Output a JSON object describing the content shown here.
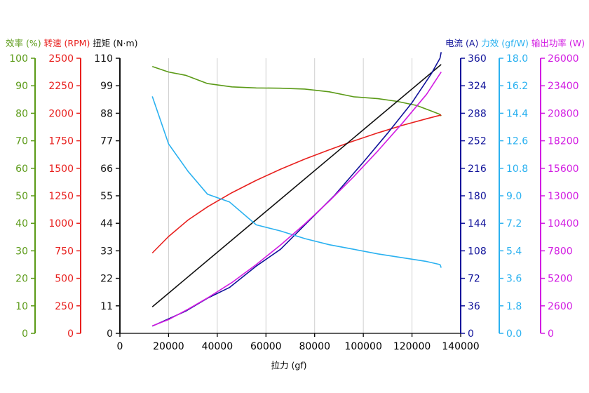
{
  "chart_data": {
    "type": "line",
    "x_axis": {
      "label": "拉力 (gf)",
      "range": [
        0,
        140000
      ],
      "ticks": [
        "0",
        "20000",
        "40000",
        "60000",
        "80000",
        "100000",
        "120000",
        "140000"
      ],
      "color": "#000000"
    },
    "left_axes": [
      {
        "id": "eff",
        "title_parts": [
          {
            "text": "效率 (%)",
            "color": "#5b9a17"
          }
        ],
        "range": [
          0,
          100
        ],
        "color": "#5b9a17",
        "ticks": [
          "0",
          "10",
          "20",
          "30",
          "40",
          "50",
          "60",
          "70",
          "80",
          "90",
          "100"
        ]
      },
      {
        "id": "rpm",
        "title_parts": [
          {
            "text": "转速 (RPM)",
            "color": "#e8201e"
          }
        ],
        "range": [
          0,
          2500
        ],
        "color": "#e8201e",
        "ticks": [
          "0",
          "250",
          "500",
          "750",
          "1000",
          "1250",
          "1500",
          "1750",
          "2000",
          "2250",
          "2500"
        ]
      },
      {
        "id": "torque",
        "title_parts": [
          {
            "text": "扭矩 (N·m)",
            "color": "#111111"
          }
        ],
        "range": [
          0,
          110
        ],
        "color": "#111111",
        "ticks": [
          "0",
          "11",
          "22",
          "33",
          "44",
          "55",
          "66",
          "77",
          "88",
          "99",
          "110"
        ]
      }
    ],
    "right_axes": [
      {
        "id": "current",
        "title_parts": [
          {
            "text": "电流 (A)",
            "color": "#10129a"
          }
        ],
        "range": [
          0,
          360
        ],
        "color": "#10129a",
        "ticks": [
          "0",
          "36",
          "72",
          "108",
          "144",
          "180",
          "216",
          "252",
          "288",
          "324",
          "360"
        ]
      },
      {
        "id": "force_eff",
        "title_parts": [
          {
            "text": "力效 (gf/W)",
            "color": "#2ab1f0"
          }
        ],
        "range": [
          0,
          18
        ],
        "color": "#2ab1f0",
        "ticks": [
          "0.0",
          "1.8",
          "3.6",
          "5.4",
          "7.2",
          "9.0",
          "10.8",
          "12.6",
          "14.4",
          "16.2",
          "18.0"
        ]
      },
      {
        "id": "power",
        "title_parts": [
          {
            "text": "输出功率 (W)",
            "color": "#d21be2"
          }
        ],
        "range": [
          0,
          26000
        ],
        "color": "#d21be2",
        "ticks": [
          "0",
          "2600",
          "5200",
          "7800",
          "10400",
          "13000",
          "15600",
          "18200",
          "20800",
          "23400",
          "26000"
        ]
      }
    ],
    "grid": "vertical",
    "series": [
      {
        "axis": "eff",
        "color": "#5b9a17",
        "x": [
          13300,
          20000,
          27000,
          36000,
          46000,
          56000,
          66000,
          76000,
          86000,
          96000,
          106000,
          114000,
          122000,
          128000,
          131500,
          132000
        ],
        "y": [
          97.0,
          95.0,
          93.8,
          90.8,
          89.6,
          89.2,
          89.1,
          88.8,
          87.8,
          86.0,
          85.3,
          84.3,
          82.8,
          80.8,
          79.6,
          79.0
        ]
      },
      {
        "axis": "rpm",
        "color": "#e8201e",
        "x": [
          13300,
          20000,
          28000,
          36000,
          46000,
          56000,
          66000,
          76000,
          86000,
          96000,
          106000,
          116000,
          126000,
          132000
        ],
        "y": [
          730,
          880,
          1030,
          1150,
          1278,
          1390,
          1492,
          1584,
          1668,
          1748,
          1822,
          1890,
          1950,
          1985
        ]
      },
      {
        "axis": "torque",
        "color": "#111111",
        "x": [
          13300,
          132000
        ],
        "y": [
          10.6,
          107.5
        ]
      },
      {
        "axis": "current",
        "color": "#10129a",
        "x": [
          13300,
          20000,
          27000,
          36000,
          45000,
          56000,
          66000,
          76000,
          88000,
          100000,
          110000,
          120000,
          128000,
          131500,
          132000
        ],
        "y": [
          9.5,
          19,
          29,
          46,
          60,
          88,
          110,
          142,
          180,
          224,
          262,
          302,
          340,
          360,
          368
        ]
      },
      {
        "axis": "force_eff",
        "color": "#2ab1f0",
        "x": [
          13300,
          20000,
          28000,
          36000,
          45000,
          56000,
          66000,
          76000,
          86000,
          96000,
          106000,
          116000,
          126000,
          131500,
          132000
        ],
        "y": [
          15.5,
          12.4,
          10.6,
          9.1,
          8.6,
          7.1,
          6.7,
          6.2,
          5.8,
          5.5,
          5.2,
          4.95,
          4.7,
          4.5,
          4.3
        ]
      },
      {
        "axis": "power",
        "color": "#d21be2",
        "x": [
          13300,
          20000,
          28000,
          36000,
          46000,
          56000,
          66000,
          76000,
          86000,
          96000,
          106000,
          116000,
          126000,
          132000
        ],
        "y": [
          700,
          1300,
          2280,
          3350,
          4800,
          6500,
          8350,
          10350,
          12500,
          14800,
          17250,
          19850,
          22600,
          24700
        ]
      }
    ]
  }
}
